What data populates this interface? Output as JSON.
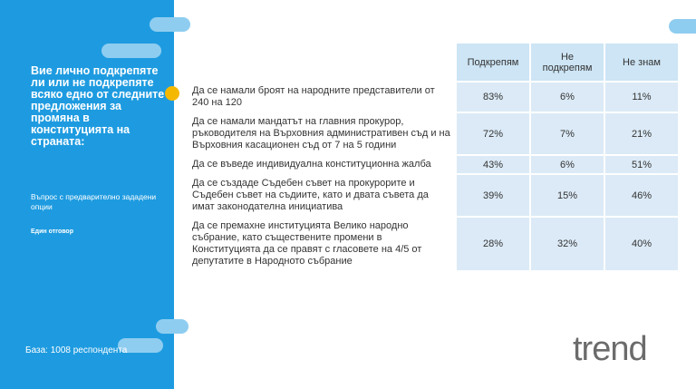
{
  "sidebar": {
    "question": "Вие лично подкрепяте ли или не подкрепяте всяко едно от следните предложения за промяна в конституцията на страната:",
    "type": "Въпрос с предварително зададени опции",
    "mode": "Един отговор",
    "base": "База: 1008 респондента"
  },
  "table": {
    "columns": [
      "Подкрепям",
      "Не подкрепям",
      "Не знам"
    ],
    "rows": [
      [
        "Да се намали броят на народните представители от 240 на 120",
        "83%",
        "6%",
        "11%"
      ],
      [
        "Да се намали мандатът на главния прокурор, ръководителя на Върховния административен съд и на Върховния касационен съд от 7 на 5 години",
        "72%",
        "7%",
        "21%"
      ],
      [
        "Да се въведе индивидуална конституционна жалба",
        "43%",
        "6%",
        "51%"
      ],
      [
        "Да се създаде Съдебен съвет на прокурорите и Съдебен съвет на съдиите, като и двата съвета да имат законодателна инициатива",
        "39%",
        "15%",
        "46%"
      ],
      [
        "Да се премахне институцията Велико народно събрание, като съществените промени в Конституцията да се правят с гласовете на 4/5 от депутатите в Народното събрание",
        "28%",
        "32%",
        "40%"
      ]
    ]
  },
  "logo": "trend"
}
